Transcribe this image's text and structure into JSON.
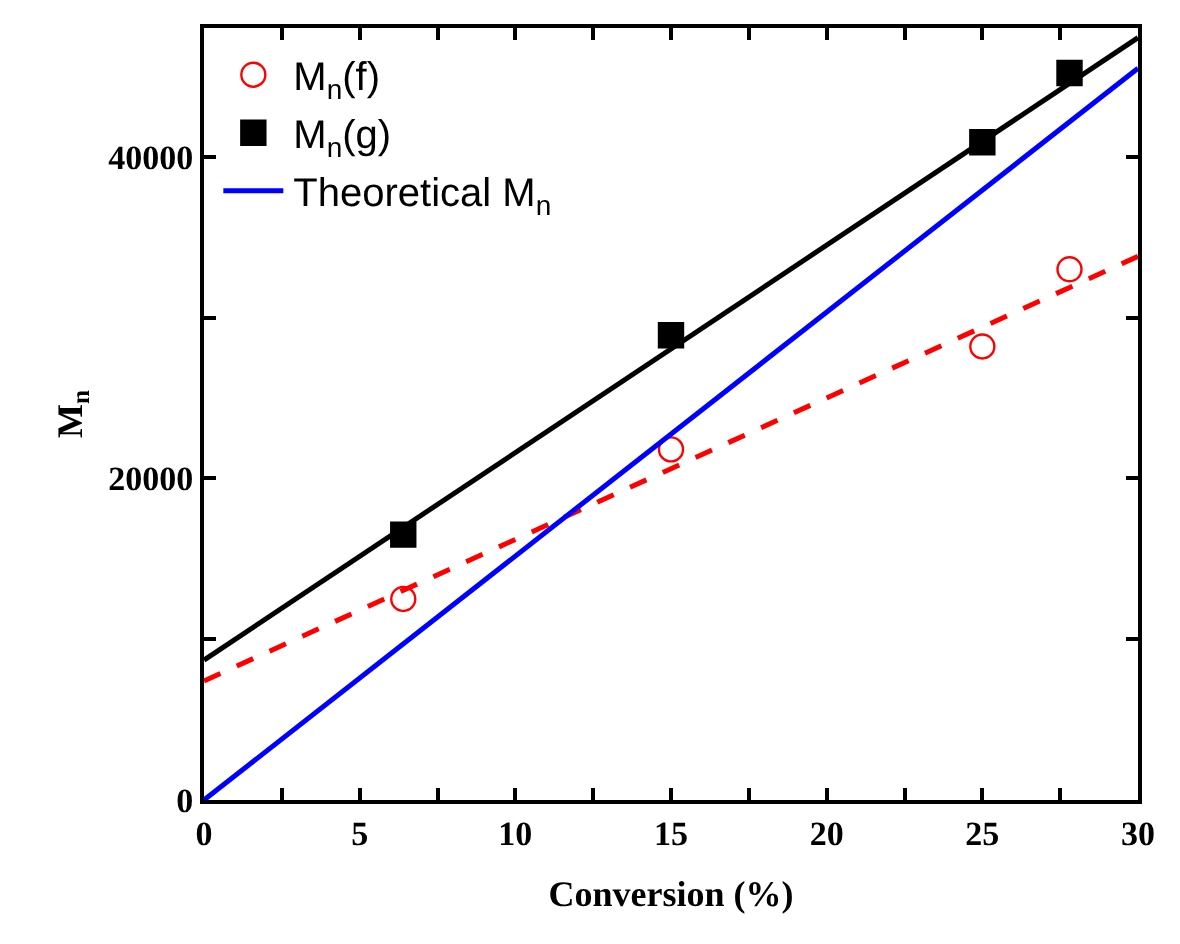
{
  "chart_data": {
    "type": "scatter",
    "xlabel": "Conversion (%)",
    "ylabel": "M$_{n}$",
    "xlim": [
      0,
      30
    ],
    "xticks": [
      0,
      {
        "value": 2.5,
        "label": null
      },
      5,
      {
        "value": 7.5,
        "label": null
      },
      10,
      {
        "value": 12.5,
        "label": null
      },
      15,
      {
        "value": 17.5,
        "label": null
      },
      20,
      {
        "value": 22.5,
        "label": null
      },
      25,
      {
        "value": 27.5,
        "label": null
      },
      30
    ],
    "ylim": [
      0,
      48000
    ],
    "yticks": [
      0,
      {
        "value": 10000,
        "label": null
      },
      20000,
      {
        "value": 30000,
        "label": null
      },
      40000
    ],
    "legend": "top left",
    "series": [
      {
        "name": "M$_{n}$(f)",
        "marker": "circle",
        "color": "#ff0000",
        "x": [
          6.4,
          15,
          25,
          27.8
        ],
        "values": [
          12500,
          21800,
          28200,
          33000
        ]
      },
      {
        "name": "M$_{n}$(g)",
        "marker": "square",
        "color": "#000000",
        "x": [
          6.4,
          15,
          25,
          27.8
        ],
        "values": [
          16500,
          28900,
          40900,
          45200
        ]
      },
      {
        "type": "line",
        "marker": "none",
        "line_style": "solid",
        "color": "#000000",
        "x": [
          0,
          30
        ],
        "values": [
          8700,
          47400
        ]
      },
      {
        "type": "line",
        "marker": "none",
        "line_style": "dashed",
        "color": "#ff0000",
        "x": [
          0,
          30
        ],
        "values": [
          7400,
          33800
        ]
      },
      {
        "name": "Theoretical M$_{n}$",
        "type": "line",
        "marker": "none",
        "line_style": "solid",
        "color": "#0000ff",
        "x": [
          0,
          30
        ],
        "values": [
          0,
          45500
        ]
      }
    ]
  }
}
